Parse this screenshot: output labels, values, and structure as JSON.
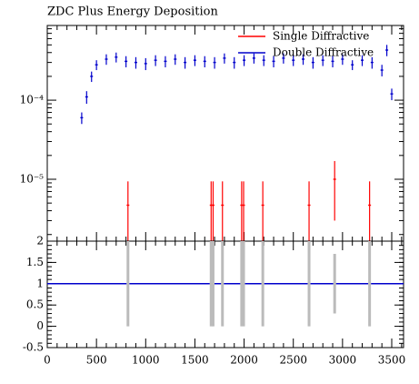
{
  "chart_data": [
    {
      "type": "errorbar",
      "title": "ZDC Plus Energy Deposition",
      "log_y": true,
      "xlim": [
        0,
        3620
      ],
      "ylim": [
        1.65e-06,
        0.00088
      ],
      "yticks": [
        {
          "value": 0.0001,
          "label": "10⁻⁴"
        },
        {
          "value": 1e-05,
          "label": "10⁻⁵"
        }
      ],
      "legend": "top-right",
      "series": [
        {
          "name": "Single Diffractive",
          "color": "#ff0000",
          "x": [
            820,
            1665,
            1685,
            1780,
            1975,
            1995,
            2190,
            2660,
            2920,
            3275
          ],
          "values": [
            4.7e-06,
            4.7e-06,
            4.7e-06,
            4.7e-06,
            4.7e-06,
            4.7e-06,
            4.7e-06,
            4.7e-06,
            1e-05,
            4.7e-06
          ],
          "errors": [
            4.7e-06,
            4.7e-06,
            4.7e-06,
            4.7e-06,
            4.7e-06,
            4.7e-06,
            4.7e-06,
            4.7e-06,
            7e-06,
            4.7e-06
          ]
        },
        {
          "name": "Double Diffractive",
          "color": "#0000cc",
          "x": [
            350,
            400,
            450,
            500,
            600,
            700,
            800,
            900,
            1000,
            1100,
            1200,
            1300,
            1400,
            1500,
            1600,
            1700,
            1800,
            1900,
            2000,
            2100,
            2200,
            2300,
            2400,
            2500,
            2600,
            2700,
            2800,
            2900,
            3000,
            3100,
            3200,
            3300,
            3400,
            3450,
            3500
          ],
          "values": [
            6e-05,
            0.00011,
            0.0002,
            0.00028,
            0.00033,
            0.00035,
            0.00031,
            0.0003,
            0.00029,
            0.00032,
            0.00031,
            0.00033,
            0.0003,
            0.00032,
            0.00031,
            0.0003,
            0.00034,
            0.0003,
            0.00032,
            0.00034,
            0.00032,
            0.00031,
            0.00034,
            0.00032,
            0.00033,
            0.0003,
            0.00032,
            0.00031,
            0.00033,
            0.00028,
            0.00032,
            0.0003,
            0.00024,
            0.00043,
            0.00012
          ],
          "errors": [
            1e-05,
            2e-05,
            3e-05,
            4e-05,
            5e-05,
            5e-05,
            5e-05,
            5e-05,
            5e-05,
            5e-05,
            5e-05,
            5e-05,
            5e-05,
            5e-05,
            5e-05,
            5e-05,
            5e-05,
            5e-05,
            5e-05,
            5e-05,
            5e-05,
            5e-05,
            5e-05,
            5e-05,
            5e-05,
            5e-05,
            5e-05,
            5e-05,
            5e-05,
            4e-05,
            5e-05,
            5e-05,
            4e-05,
            7e-05,
            2e-05
          ]
        }
      ]
    },
    {
      "type": "errorbar",
      "xlim": [
        0,
        3620
      ],
      "ylim": [
        -0.5,
        2
      ],
      "xticks": [
        0,
        500,
        1000,
        1500,
        2000,
        2500,
        3000,
        3500
      ],
      "yticks": [
        -0.5,
        0,
        0.5,
        1,
        1.5,
        2
      ],
      "reference": 1,
      "reference_color": "#0000cc",
      "series": [
        {
          "color": "#bbbbbb",
          "x": [
            820,
            1665,
            1685,
            1780,
            1975,
            1995,
            2190,
            2660,
            2920,
            3275
          ],
          "values": [
            1,
            1,
            1,
            1,
            1,
            1,
            1,
            1,
            1,
            1
          ],
          "errors": [
            1,
            1,
            1,
            1,
            1,
            1,
            1,
            1,
            0.7,
            1
          ]
        }
      ]
    }
  ]
}
